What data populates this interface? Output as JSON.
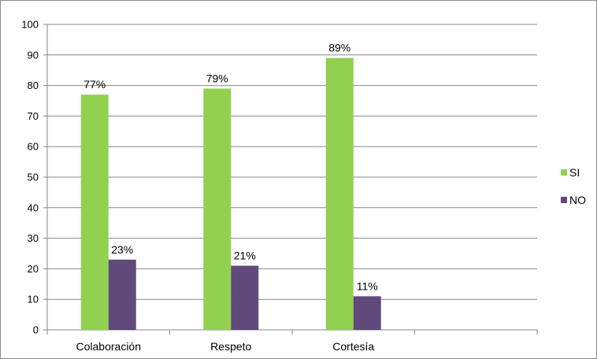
{
  "chart_data": {
    "type": "bar",
    "title": "",
    "xlabel": "",
    "ylabel": "",
    "ylim": [
      0,
      100
    ],
    "yticks": [
      0,
      10,
      20,
      30,
      40,
      50,
      60,
      70,
      80,
      90,
      100
    ],
    "grid": true,
    "legend_position": "right",
    "categories": [
      "Colaboración",
      "Respeto",
      "Cortesía",
      ""
    ],
    "series": [
      {
        "name": "SI",
        "color": "#92d050",
        "values": [
          77,
          79,
          89,
          null
        ],
        "labels": [
          "77%",
          "79%",
          "89%",
          ""
        ]
      },
      {
        "name": "NO",
        "color": "#604a7b",
        "values": [
          23,
          21,
          11,
          null
        ],
        "labels": [
          "23%",
          "21%",
          "11%",
          ""
        ]
      }
    ]
  }
}
